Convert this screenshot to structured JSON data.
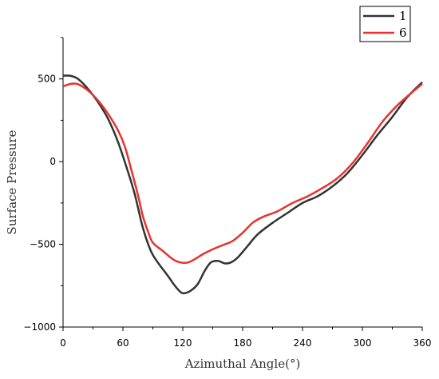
{
  "chart_data": {
    "type": "line",
    "xlabel": "Azimuthal Angle(°)",
    "ylabel": "Surface Pressure",
    "xlim": [
      0,
      360
    ],
    "ylim": [
      -1000,
      750
    ],
    "x_ticks": [
      {
        "value": 0,
        "label": "0"
      },
      {
        "value": 60,
        "label": "60"
      },
      {
        "value": 120,
        "label": "120"
      },
      {
        "value": 180,
        "label": "180"
      },
      {
        "value": 240,
        "label": "240"
      },
      {
        "value": 300,
        "label": "300"
      },
      {
        "value": 360,
        "label": "360"
      }
    ],
    "y_ticks": [
      {
        "value": 500,
        "label": "500"
      },
      {
        "value": 0,
        "label": "0"
      },
      {
        "value": -500,
        "label": "−500"
      },
      {
        "value": -1000,
        "label": "−1000"
      }
    ],
    "grid": false,
    "legend": "top-right",
    "series": [
      {
        "name": "1",
        "color": "#333333",
        "points": [
          [
            0,
            520
          ],
          [
            8,
            518
          ],
          [
            15,
            500
          ],
          [
            25,
            440
          ],
          [
            35,
            360
          ],
          [
            45,
            260
          ],
          [
            55,
            120
          ],
          [
            65,
            -60
          ],
          [
            72,
            -200
          ],
          [
            80,
            -400
          ],
          [
            88,
            -540
          ],
          [
            95,
            -610
          ],
          [
            105,
            -690
          ],
          [
            112,
            -750
          ],
          [
            118,
            -790
          ],
          [
            122,
            -795
          ],
          [
            128,
            -780
          ],
          [
            135,
            -740
          ],
          [
            142,
            -660
          ],
          [
            148,
            -610
          ],
          [
            155,
            -600
          ],
          [
            162,
            -615
          ],
          [
            168,
            -610
          ],
          [
            175,
            -580
          ],
          [
            185,
            -510
          ],
          [
            195,
            -440
          ],
          [
            210,
            -370
          ],
          [
            225,
            -310
          ],
          [
            240,
            -250
          ],
          [
            255,
            -210
          ],
          [
            270,
            -150
          ],
          [
            285,
            -70
          ],
          [
            300,
            40
          ],
          [
            315,
            160
          ],
          [
            330,
            270
          ],
          [
            345,
            390
          ],
          [
            360,
            480
          ]
        ]
      },
      {
        "name": "6",
        "color": "#e8322f",
        "points": [
          [
            0,
            455
          ],
          [
            8,
            470
          ],
          [
            15,
            468
          ],
          [
            25,
            430
          ],
          [
            35,
            370
          ],
          [
            45,
            290
          ],
          [
            55,
            190
          ],
          [
            62,
            90
          ],
          [
            68,
            -40
          ],
          [
            75,
            -200
          ],
          [
            80,
            -330
          ],
          [
            85,
            -420
          ],
          [
            90,
            -490
          ],
          [
            100,
            -540
          ],
          [
            110,
            -590
          ],
          [
            118,
            -610
          ],
          [
            125,
            -610
          ],
          [
            132,
            -590
          ],
          [
            140,
            -560
          ],
          [
            150,
            -530
          ],
          [
            160,
            -505
          ],
          [
            170,
            -480
          ],
          [
            180,
            -430
          ],
          [
            190,
            -370
          ],
          [
            200,
            -335
          ],
          [
            215,
            -300
          ],
          [
            230,
            -250
          ],
          [
            245,
            -210
          ],
          [
            260,
            -160
          ],
          [
            275,
            -100
          ],
          [
            290,
            -10
          ],
          [
            305,
            110
          ],
          [
            320,
            240
          ],
          [
            335,
            340
          ],
          [
            350,
            420
          ],
          [
            360,
            470
          ]
        ]
      }
    ]
  }
}
